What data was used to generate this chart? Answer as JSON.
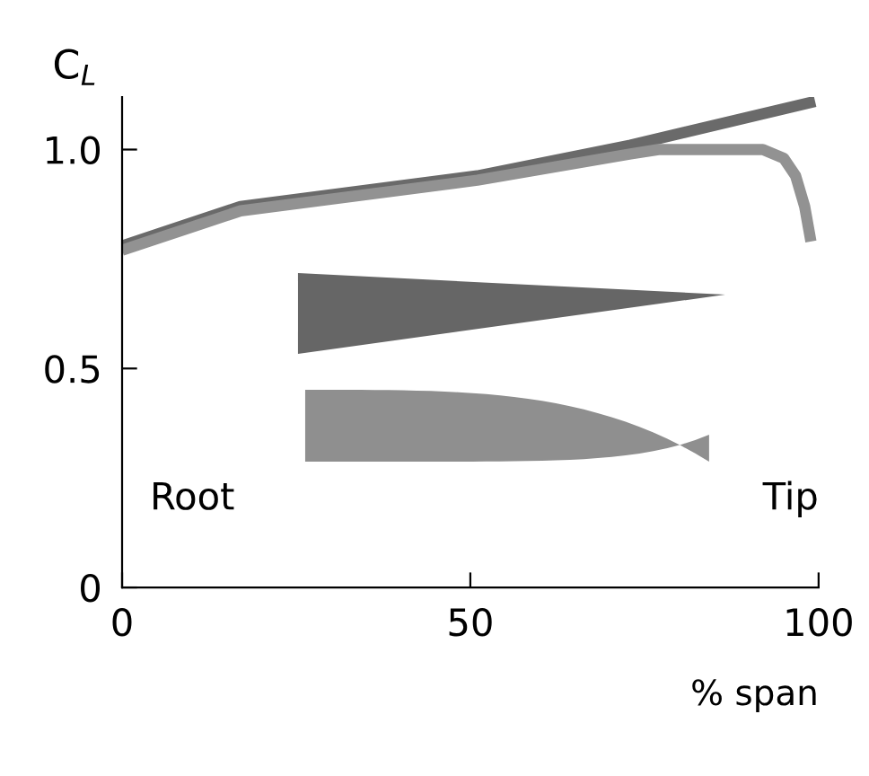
{
  "chart_data": {
    "type": "line",
    "xlabel": "% span",
    "ylabel": "C$_{L}$",
    "series": [
      {
        "color": "#6a6a6a",
        "x": [
          0,
          17,
          51,
          73,
          99.5
        ],
        "values": [
          0.78,
          0.87,
          0.94,
          1.01,
          1.11
        ]
      },
      {
        "color": "#929292",
        "x": [
          0,
          17,
          51,
          73,
          77,
          92,
          95,
          96.7,
          98,
          98.9
        ],
        "values": [
          0.77,
          0.86,
          0.93,
          0.99,
          1.0,
          1.0,
          0.98,
          0.94,
          0.87,
          0.79
        ]
      }
    ],
    "xlim": [
      0,
      100
    ],
    "xticks": [
      0,
      50,
      100
    ],
    "ylim": [
      0,
      1.12
    ],
    "yticks": [
      0,
      {
        "value": 0.5,
        "label": "0.5"
      },
      {
        "value": 1.0,
        "label": "1.0"
      }
    ],
    "annotations": [
      "Root",
      "Tip"
    ],
    "grid": false,
    "marker": "none",
    "line_style": "solid"
  }
}
